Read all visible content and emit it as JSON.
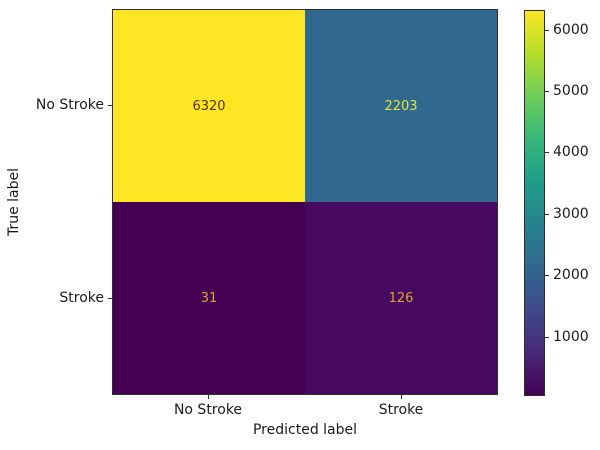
{
  "colors": {
    "background": "#ffffff",
    "text": "#1b1b1b",
    "spine": "#2e2e2e"
  },
  "chart_data": {
    "type": "heatmap",
    "subtype": "confusion_matrix",
    "title": "",
    "xlabel": "Predicted label",
    "ylabel": "True label",
    "x_tick_labels": [
      "No Stroke",
      "Stroke"
    ],
    "y_tick_labels": [
      "No Stroke",
      "Stroke"
    ],
    "matrix": [
      [
        6320,
        2203
      ],
      [
        31,
        126
      ]
    ],
    "cell_bg": [
      [
        "#fde725",
        "#31688e"
      ],
      [
        "#440154",
        "#47095f"
      ]
    ],
    "cell_fg": [
      [
        "#5c2e10",
        "#dde33a"
      ],
      [
        "#d9a42d",
        "#d9a42d"
      ]
    ],
    "colormap": "viridis",
    "grid": false,
    "legend": null,
    "colorbar": {
      "vmin": 31,
      "vmax": 6320,
      "ticks": [
        1000,
        2000,
        3000,
        4000,
        5000,
        6000
      ],
      "gradient_stops": [
        "#440154",
        "#482878",
        "#3e4a89",
        "#31688e",
        "#26828e",
        "#1f9e89",
        "#35b779",
        "#6ece58",
        "#b5de2b",
        "#fde725"
      ]
    }
  }
}
